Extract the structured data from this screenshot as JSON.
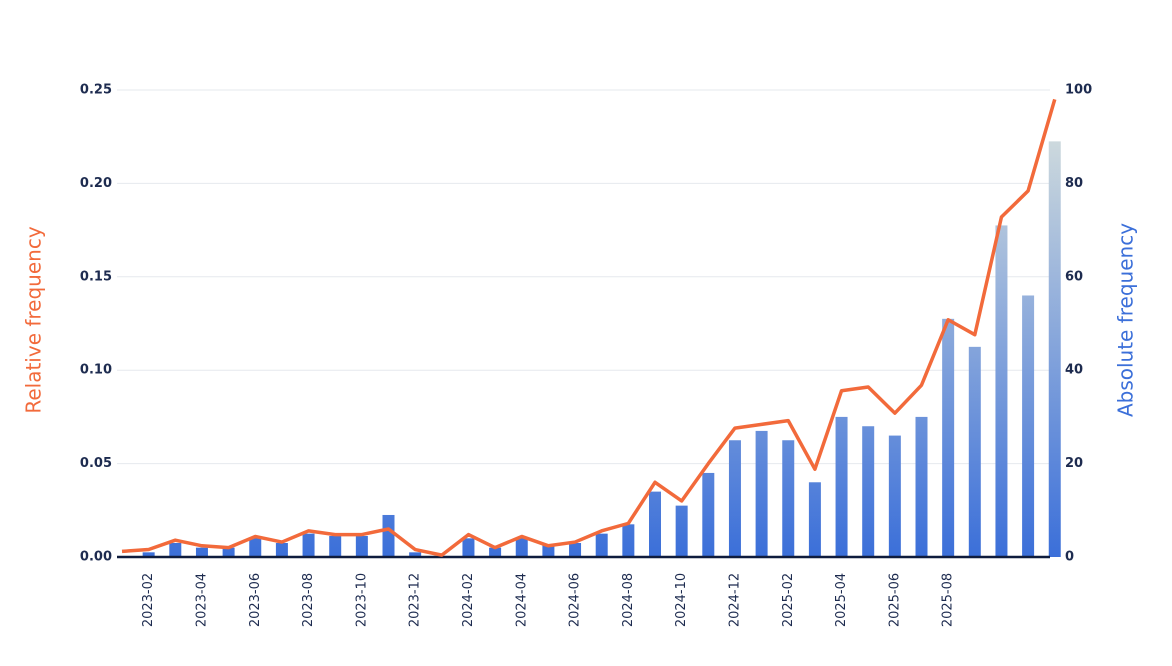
{
  "chart_data": {
    "type": "bar-line",
    "y_label": "Relative frequency",
    "y2_label": "Absolute frequency",
    "categories": [
      null,
      "2023-02",
      null,
      "2023-04",
      null,
      "2023-06",
      null,
      "2023-08",
      null,
      "2023-10",
      null,
      "2023-12",
      null,
      "2024-02",
      null,
      "2024-04",
      null,
      "2024-06",
      null,
      "2024-08",
      null,
      "2024-10",
      null,
      "2024-12",
      null,
      "2025-02",
      null,
      "2025-04",
      null,
      "2025-06",
      null,
      "2025-08",
      null,
      null,
      null,
      null
    ],
    "series": [
      {
        "name": "Absolute frequency",
        "kind": "bar",
        "axis": "y2",
        "color": "#3b6fd9",
        "fade_color": "#cdd9dd",
        "values": [
          0,
          1,
          3,
          2,
          2,
          4,
          3,
          5,
          4.5,
          4.5,
          9,
          1,
          0,
          4,
          2,
          4,
          2.5,
          3,
          5,
          7,
          14,
          11,
          18,
          25,
          27,
          25,
          16,
          30,
          28,
          26,
          30,
          51,
          45,
          71,
          56,
          89
        ]
      },
      {
        "name": "Relative frequency",
        "kind": "line",
        "axis": "y",
        "color": "#f26a3b",
        "values": [
          0.003,
          0.004,
          0.009,
          0.006,
          0.005,
          0.011,
          0.008,
          0.014,
          0.012,
          0.012,
          0.015,
          0.004,
          0.001,
          0.012,
          0.005,
          0.011,
          0.006,
          0.008,
          0.014,
          0.018,
          0.04,
          0.03,
          0.05,
          0.069,
          0.071,
          0.073,
          0.047,
          0.089,
          0.091,
          0.077,
          0.092,
          0.127,
          0.119,
          0.182,
          0.196,
          0.245
        ]
      }
    ],
    "ylim": [
      0,
      0.25
    ],
    "yticks": [
      {
        "value": 0,
        "label": "0.00"
      },
      {
        "value": 0.05,
        "label": "0.05"
      },
      {
        "value": 0.1,
        "label": "0.10"
      },
      {
        "value": 0.15,
        "label": "0.15"
      },
      {
        "value": 0.2,
        "label": "0.20"
      },
      {
        "value": 0.25,
        "label": "0.25"
      }
    ],
    "y2lim": [
      0,
      100
    ],
    "y2ticks": [
      0,
      20,
      40,
      60,
      80,
      100
    ],
    "grid": true
  }
}
